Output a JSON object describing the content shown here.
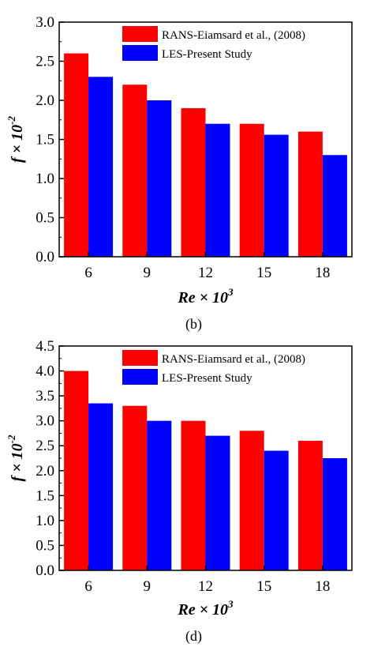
{
  "colors": {
    "rans": "#ff0000",
    "les": "#0000ff"
  },
  "chart_data": [
    {
      "type": "bar",
      "panel": "(b)",
      "categories": [
        "6",
        "9",
        "12",
        "15",
        "18"
      ],
      "series": [
        {
          "name": "RANS-Eiamsard et al., (2008)",
          "values": [
            2.6,
            2.2,
            1.9,
            1.7,
            1.6
          ]
        },
        {
          "name": "LES-Present Study",
          "values": [
            2.3,
            2.0,
            1.7,
            1.56,
            1.3
          ]
        }
      ],
      "ylim": [
        0,
        3.0
      ],
      "yticks": [
        "0.0",
        "0.5",
        "1.0",
        "1.5",
        "2.0",
        "2.5",
        "3.0"
      ],
      "ylabel_main": "f × 10",
      "ylabel_sup": "-2",
      "xlabel_main": "Re × 10",
      "xlabel_sup": "3",
      "legend": "top-right"
    },
    {
      "type": "bar",
      "panel": "(d)",
      "categories": [
        "6",
        "9",
        "12",
        "15",
        "18"
      ],
      "series": [
        {
          "name": "RANS-Eiamsard et al., (2008)",
          "values": [
            4.0,
            3.3,
            3.0,
            2.8,
            2.6
          ]
        },
        {
          "name": "LES-Present Study",
          "values": [
            3.35,
            3.0,
            2.7,
            2.4,
            2.25
          ]
        }
      ],
      "ylim": [
        0,
        4.5
      ],
      "yticks": [
        "0.0",
        "0.5",
        "1.0",
        "1.5",
        "2.0",
        "2.5",
        "3.0",
        "3.5",
        "4.0",
        "4.5"
      ],
      "ylabel_main": "f × 10",
      "ylabel_sup": "-2",
      "xlabel_main": "Re × 10",
      "xlabel_sup": "3",
      "legend": "top-right"
    }
  ]
}
